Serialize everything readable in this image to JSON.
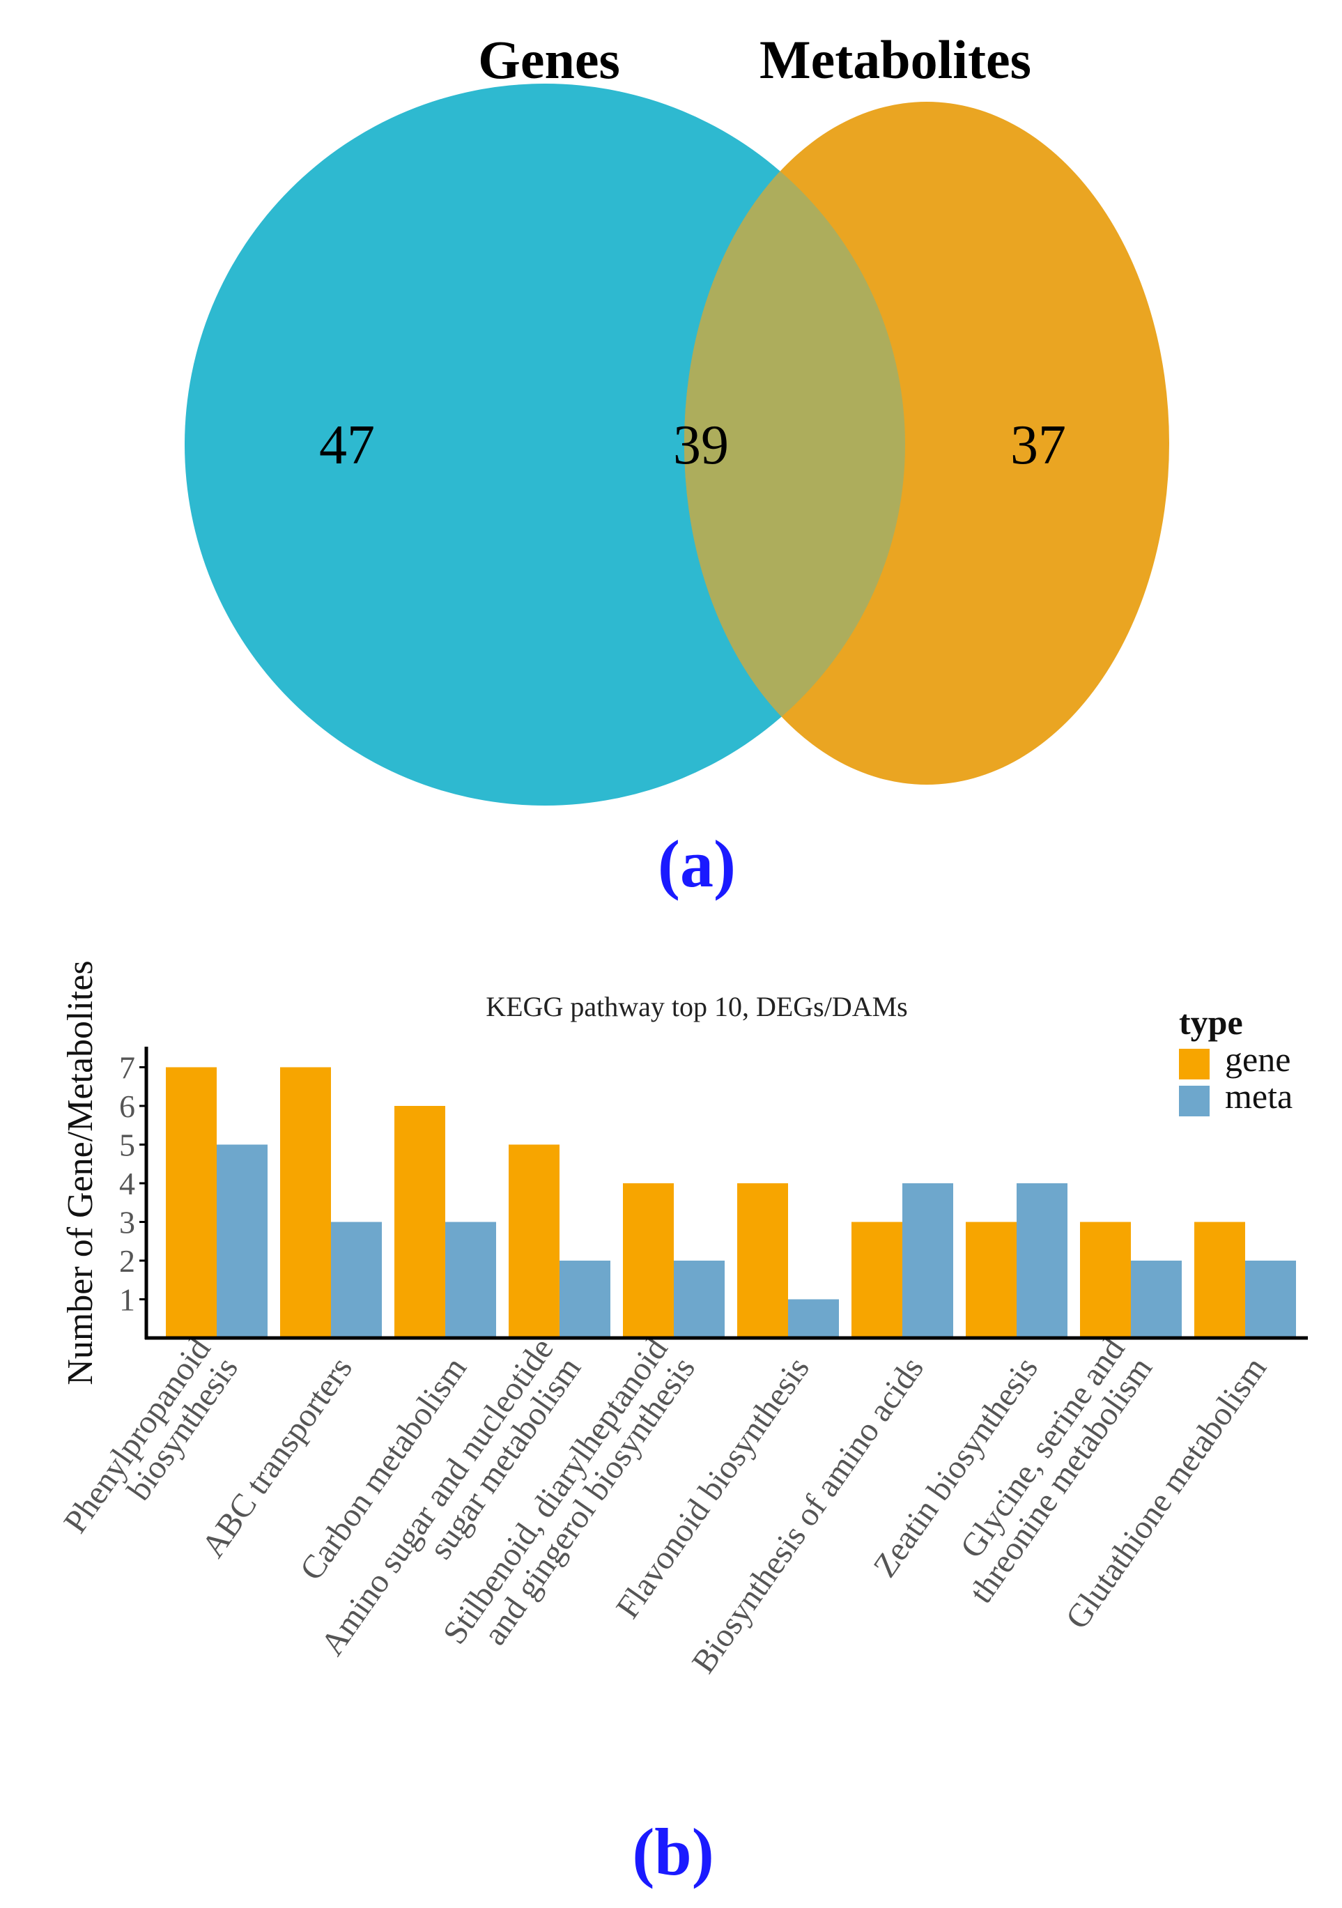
{
  "colors": {
    "genes_circle": "#2eb9d0",
    "metabolites_circle": "#eaa522",
    "overlap": "#adad5c",
    "gene_bar": "#f7a500",
    "meta_bar": "#6ea7cc",
    "panel_label": "#1a1aff"
  },
  "chart_data": [
    {
      "type": "venn",
      "sets": [
        "Genes",
        "Metabolites"
      ],
      "values": {
        "genes_only": "47",
        "intersection": "39",
        "metabolites_only": "37"
      },
      "panel_label": "(a)"
    },
    {
      "type": "bar",
      "title": "KEGG pathway top 10, DEGs/DAMs",
      "ylabel": "Number of Gene/Metabolites",
      "xlabel": "",
      "ylim": [
        0,
        7.6
      ],
      "yticks": [
        "1",
        "2",
        "3",
        "4",
        "5",
        "6",
        "7"
      ],
      "categories": [
        [
          "Phenylpropanoid",
          "biosynthesis"
        ],
        [
          "ABC transporters"
        ],
        [
          "Carbon metabolism"
        ],
        [
          "Amino sugar and nucleotide",
          "sugar metabolism"
        ],
        [
          "Stilbenoid, diarylheptanoid",
          "and gingerol biosynthesis"
        ],
        [
          "Flavonoid biosynthesis"
        ],
        [
          "Biosynthesis of amino acids"
        ],
        [
          "Zeatin biosynthesis"
        ],
        [
          "Glycine, serine and",
          "threonine metabolism"
        ],
        [
          "Glutathione metabolism"
        ]
      ],
      "series": [
        {
          "name": "gene",
          "values": [
            7,
            7,
            6,
            5,
            4,
            4,
            3,
            3,
            3,
            3
          ]
        },
        {
          "name": "meta",
          "values": [
            5,
            3,
            3,
            2,
            2,
            1,
            4,
            4,
            2,
            2
          ]
        }
      ],
      "legend": {
        "title": "type",
        "position": "top-right"
      },
      "panel_label": "(b)"
    }
  ]
}
